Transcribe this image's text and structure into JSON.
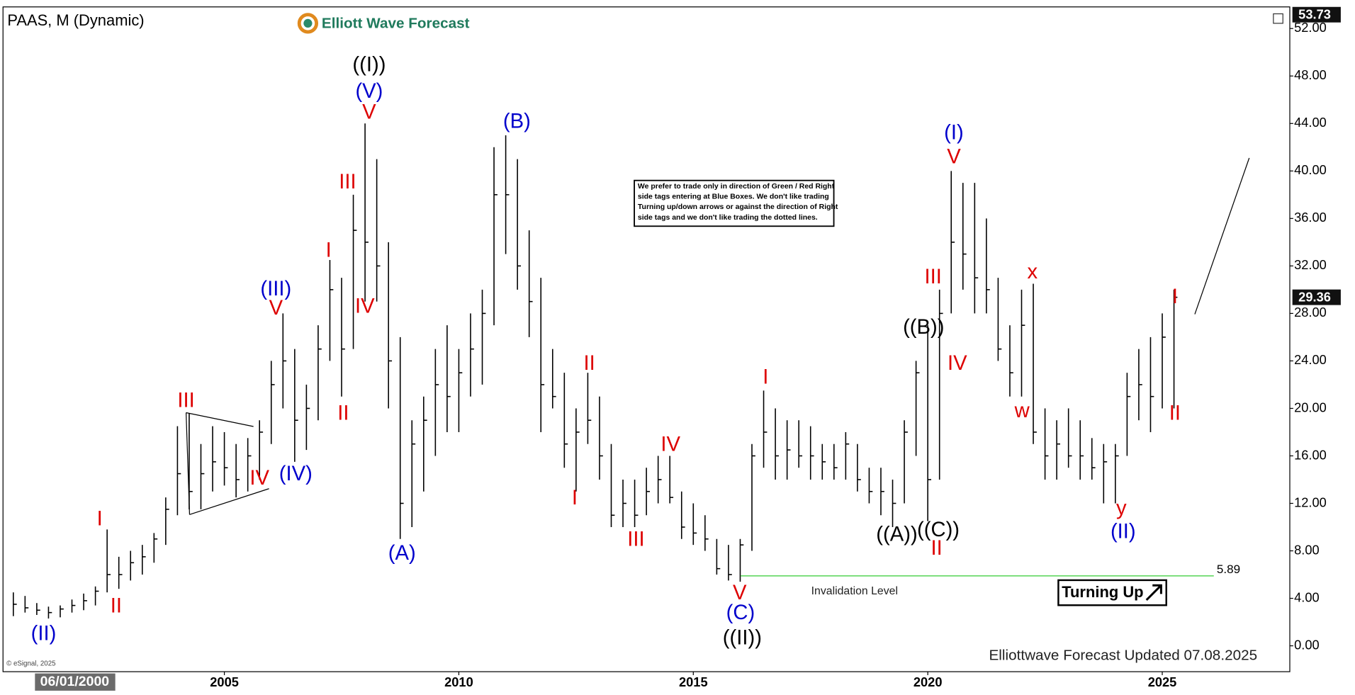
{
  "chart_data": {
    "type": "hlc",
    "title": "PAAS, M (Dynamic)",
    "brand": "Elliott Wave Forecast",
    "date_badge": "06/01/2000",
    "copyright": "© eSignal, 2025",
    "footer": "Elliottwave Forecast Updated 07.08.2025",
    "note": [
      "We prefer to trade only in direction of Green / Red Right",
      "side tags entering at Blue Boxes. We don't like trading",
      "Turning up/down arrows or against the direction of Right",
      "side tags and we don't like trading the dotted lines."
    ],
    "signal": "Turning Up",
    "invalidation_label": "Invalidation Level",
    "invalidation_level": 5.89,
    "invalidation_color": "#33cc33",
    "top_price_tag": 53.73,
    "last_price": 29.36,
    "color": "#000000",
    "xlim": [
      2000.28,
      2027.72
    ],
    "ylim": [
      -2.18,
      53.82
    ],
    "xticks": [
      2005,
      2010,
      2015,
      2020,
      2025
    ],
    "yticks": [
      {
        "value": 0,
        "label": "0.00"
      },
      {
        "value": 4,
        "label": "4.00"
      },
      {
        "value": 8,
        "label": "8.00"
      },
      {
        "value": 12,
        "label": "12.00"
      },
      {
        "value": 16,
        "label": "16.00"
      },
      {
        "value": 20,
        "label": "20.00"
      },
      {
        "value": 24,
        "label": "24.00"
      },
      {
        "value": 28,
        "label": "28.00"
      },
      {
        "value": 32,
        "label": "32.00"
      },
      {
        "value": 36,
        "label": "36.00"
      },
      {
        "value": 40,
        "label": "40.00"
      },
      {
        "value": 44,
        "label": "44.00"
      },
      {
        "value": 48,
        "label": "48.00"
      },
      {
        "value": 52,
        "label": "52.00"
      }
    ],
    "x": [
      2000.5,
      2000.75,
      2001,
      2001.25,
      2001.5,
      2001.75,
      2002,
      2002.25,
      2002.5,
      2002.75,
      2003,
      2003.25,
      2003.5,
      2003.75,
      2004,
      2004.25,
      2004.5,
      2004.75,
      2005,
      2005.25,
      2005.5,
      2005.75,
      2006,
      2006.25,
      2006.5,
      2006.75,
      2007,
      2007.25,
      2007.5,
      2007.75,
      2008,
      2008.25,
      2008.5,
      2008.75,
      2009,
      2009.25,
      2009.5,
      2009.75,
      2010,
      2010.25,
      2010.5,
      2010.75,
      2011,
      2011.25,
      2011.5,
      2011.75,
      2012,
      2012.25,
      2012.5,
      2012.75,
      2013,
      2013.25,
      2013.5,
      2013.75,
      2014,
      2014.25,
      2014.5,
      2014.75,
      2015,
      2015.25,
      2015.5,
      2015.75,
      2016,
      2016.25,
      2016.5,
      2016.75,
      2017,
      2017.25,
      2017.5,
      2017.75,
      2018,
      2018.25,
      2018.5,
      2018.75,
      2019,
      2019.25,
      2019.5,
      2019.75,
      2020,
      2020.25,
      2020.5,
      2020.75,
      2021,
      2021.25,
      2021.5,
      2021.75,
      2022,
      2022.25,
      2022.5,
      2022.75,
      2023,
      2023.25,
      2023.5,
      2023.75,
      2024,
      2024.25,
      2024.5,
      2024.75,
      2025,
      2025.25
    ],
    "high": [
      4.5,
      4.2,
      3.6,
      3.3,
      3.4,
      3.9,
      4.4,
      5.0,
      9.8,
      7.5,
      8.0,
      8.5,
      9.5,
      12.5,
      18.5,
      19.6,
      17.0,
      18.5,
      18.0,
      17.0,
      17.5,
      19.0,
      24.0,
      28.0,
      25.0,
      22.0,
      27.0,
      32.5,
      31.0,
      38.0,
      44.0,
      41.0,
      34.0,
      26.0,
      19.0,
      21.0,
      25.0,
      27.0,
      25.0,
      28.0,
      30.0,
      42.0,
      43.0,
      41.0,
      35.0,
      31.0,
      25.0,
      23.0,
      20.0,
      23.0,
      21.0,
      17.0,
      14.0,
      14.0,
      15.0,
      16.0,
      16.0,
      13.0,
      12.0,
      11.0,
      9.0,
      8.5,
      9.0,
      17.0,
      21.5,
      20.0,
      19.0,
      19.0,
      18.5,
      17.0,
      17.0,
      18.0,
      17.0,
      15.0,
      15.0,
      14.0,
      19.0,
      24.0,
      27.0,
      30.0,
      40.0,
      39.0,
      39.0,
      36.0,
      31.0,
      27.0,
      30.0,
      30.5,
      20.0,
      19.0,
      20.0,
      19.0,
      17.5,
      17.0,
      17.0,
      23.0,
      25.0,
      26.0,
      28.0,
      30.0
    ],
    "low": [
      2.5,
      2.8,
      2.6,
      2.3,
      2.4,
      2.8,
      3.0,
      3.4,
      4.5,
      4.8,
      5.5,
      6.0,
      7.0,
      8.5,
      11.0,
      11.5,
      11.5,
      13.0,
      13.5,
      12.5,
      13.0,
      14.0,
      17.0,
      20.0,
      15.5,
      16.5,
      19.0,
      24.0,
      21.0,
      25.0,
      29.0,
      29.0,
      20.0,
      9.0,
      10.0,
      13.0,
      16.0,
      18.0,
      18.0,
      21.0,
      22.0,
      27.0,
      33.0,
      30.0,
      26.0,
      18.0,
      20.0,
      15.0,
      13.0,
      17.0,
      14.0,
      10.0,
      10.0,
      10.0,
      11.0,
      12.0,
      12.0,
      9.0,
      8.5,
      8.0,
      6.0,
      5.5,
      5.4,
      8.0,
      15.0,
      14.0,
      14.0,
      15.0,
      14.0,
      14.0,
      14.0,
      14.0,
      13.0,
      12.0,
      11.0,
      10.0,
      12.0,
      16.0,
      10.5,
      14.0,
      28.0,
      30.0,
      28.0,
      28.0,
      24.0,
      21.0,
      21.0,
      17.0,
      14.0,
      14.0,
      15.0,
      14.0,
      14.0,
      12.0,
      12.0,
      16.0,
      19.0,
      18.0,
      20.0,
      20.0
    ],
    "close": [
      3.5,
      3.2,
      3.0,
      2.8,
      3.1,
      3.4,
      3.8,
      4.6,
      6.0,
      6.0,
      7.0,
      7.5,
      9.0,
      11.5,
      14.5,
      13.0,
      14.5,
      15.5,
      15.0,
      14.0,
      16.0,
      18.0,
      22.0,
      24.0,
      19.0,
      20.0,
      25.0,
      30.0,
      25.0,
      35.0,
      34.0,
      32.0,
      24.0,
      12.0,
      17.0,
      19.0,
      22.0,
      21.0,
      23.0,
      25.0,
      28.0,
      38.0,
      38.0,
      32.0,
      29.0,
      22.0,
      21.0,
      17.0,
      18.0,
      19.0,
      16.0,
      11.0,
      12.0,
      11.0,
      13.0,
      14.0,
      12.5,
      10.0,
      9.5,
      9.0,
      6.5,
      6.0,
      8.5,
      16.0,
      18.0,
      16.0,
      16.5,
      16.0,
      16.0,
      15.5,
      15.0,
      17.0,
      14.0,
      13.0,
      13.0,
      12.0,
      18.0,
      23.0,
      14.0,
      28.0,
      34.0,
      33.0,
      31.0,
      30.0,
      25.0,
      23.0,
      27.0,
      18.0,
      16.0,
      17.0,
      16.0,
      16.0,
      15.0,
      15.5,
      16.0,
      21.0,
      22.0,
      21.0,
      26.0,
      29.36
    ],
    "annotations": [
      {
        "text": "((I))",
        "color": "#000000"
      },
      {
        "text": "(V)",
        "color": "#0000cc"
      },
      {
        "text": "V",
        "color": "#dd0000"
      },
      {
        "text": "III",
        "color": "#dd0000"
      },
      {
        "text": "I",
        "color": "#dd0000"
      },
      {
        "text": "IV",
        "color": "#dd0000"
      },
      {
        "text": "II",
        "color": "#dd0000"
      },
      {
        "text": "(III)",
        "color": "#0000cc"
      },
      {
        "text": "V",
        "color": "#dd0000"
      },
      {
        "text": "(IV)",
        "color": "#0000cc"
      },
      {
        "text": "IV",
        "color": "#dd0000"
      },
      {
        "text": "III",
        "color": "#dd0000"
      },
      {
        "text": "I",
        "color": "#dd0000"
      },
      {
        "text": "II",
        "color": "#dd0000"
      },
      {
        "text": "(II)",
        "color": "#0000cc"
      },
      {
        "text": "(A)",
        "color": "#0000cc"
      },
      {
        "text": "(B)",
        "color": "#0000cc"
      },
      {
        "text": "II",
        "color": "#dd0000"
      },
      {
        "text": "I",
        "color": "#dd0000"
      },
      {
        "text": "III",
        "color": "#dd0000"
      },
      {
        "text": "IV",
        "color": "#dd0000"
      },
      {
        "text": "V",
        "color": "#dd0000"
      },
      {
        "text": "(C)",
        "color": "#0000cc"
      },
      {
        "text": "((II))",
        "color": "#000000"
      },
      {
        "text": "I",
        "color": "#dd0000"
      },
      {
        "text": "((A))",
        "color": "#000000"
      },
      {
        "text": "((B))",
        "color": "#000000"
      },
      {
        "text": "((C))",
        "color": "#000000"
      },
      {
        "text": "II",
        "color": "#dd0000"
      },
      {
        "text": "III",
        "color": "#dd0000"
      },
      {
        "text": "IV",
        "color": "#dd0000"
      },
      {
        "text": "V",
        "color": "#dd0000"
      },
      {
        "text": "(I)",
        "color": "#0000cc"
      },
      {
        "text": "x",
        "color": "#dd0000"
      },
      {
        "text": "w",
        "color": "#dd0000"
      },
      {
        "text": "y",
        "color": "#dd0000"
      },
      {
        "text": "(II)",
        "color": "#0000cc"
      },
      {
        "text": "I",
        "color": "#dd0000"
      },
      {
        "text": "II",
        "color": "#dd0000"
      }
    ]
  }
}
